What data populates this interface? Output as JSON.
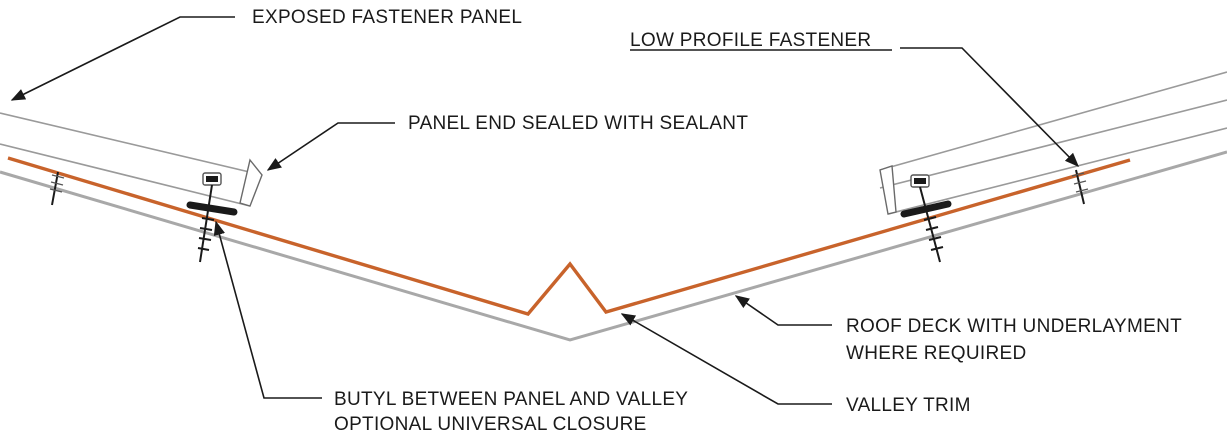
{
  "callouts": {
    "exposed_fastener_panel": "EXPOSED FASTENER PANEL",
    "low_profile_fastener": "LOW PROFILE FASTENER",
    "panel_end_sealed": "PANEL END SEALED WITH  SEALANT",
    "roof_deck_line1": "ROOF DECK WITH UNDERLAYMENT",
    "roof_deck_line2": "WHERE REQUIRED",
    "butyl_line1": "BUTYL BETWEEN PANEL AND VALLEY",
    "butyl_line2": "OPTIONAL UNIVERSAL CLOSURE",
    "valley_trim": "VALLEY TRIM"
  },
  "colors": {
    "valley_trim": "#c8632b",
    "roof_deck": "#a8a8a8",
    "linework": "#1a1a1a"
  }
}
